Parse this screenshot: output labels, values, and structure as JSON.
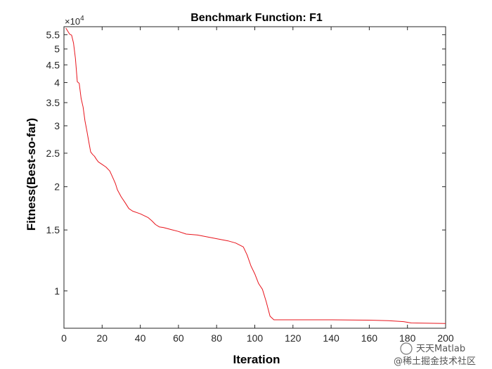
{
  "chart_data": {
    "type": "line",
    "title": "Benchmark Function: F1",
    "xlabel": "Iteration",
    "ylabel": "Fitness(Best-so-far)",
    "yscale": "log",
    "y_exponent_label": "×10",
    "y_exponent_power": "4",
    "xlim": [
      0,
      200
    ],
    "ylim": [
      7800,
      58000
    ],
    "x_ticks": [
      0,
      20,
      40,
      60,
      80,
      100,
      120,
      140,
      160,
      180,
      200
    ],
    "y_ticks": [
      {
        "value": 10000,
        "label": "1"
      },
      {
        "value": 15000,
        "label": "1.5"
      },
      {
        "value": 20000,
        "label": "2"
      },
      {
        "value": 25000,
        "label": "2.5"
      },
      {
        "value": 30000,
        "label": "3"
      },
      {
        "value": 35000,
        "label": "3.5"
      },
      {
        "value": 40000,
        "label": "4"
      },
      {
        "value": 45000,
        "label": "4.5"
      },
      {
        "value": 50000,
        "label": "5"
      },
      {
        "value": 55000,
        "label": "5.5"
      }
    ],
    "grid": false,
    "series": [
      {
        "color": "#e8141c",
        "x": [
          1,
          2,
          3,
          4,
          5,
          6,
          7,
          8,
          9,
          10,
          11,
          12,
          13,
          14,
          15,
          16,
          17,
          18,
          20,
          22,
          24,
          25,
          26,
          27,
          28,
          30,
          32,
          34,
          36,
          40,
          44,
          46,
          48,
          50,
          52,
          56,
          60,
          64,
          70,
          80,
          86,
          90,
          94,
          96,
          98,
          100,
          102,
          104,
          106,
          108,
          110,
          120,
          140,
          160,
          170,
          178,
          182,
          200
        ],
        "y": [
          57500,
          56300,
          55200,
          54800,
          52000,
          47000,
          40200,
          39800,
          36000,
          34000,
          31000,
          29000,
          27000,
          25200,
          24800,
          24500,
          24000,
          23600,
          23200,
          22800,
          22200,
          21600,
          21000,
          20400,
          19600,
          18700,
          18000,
          17300,
          17000,
          16700,
          16300,
          15950,
          15550,
          15300,
          15250,
          15050,
          14850,
          14600,
          14500,
          14150,
          13950,
          13750,
          13400,
          12700,
          11800,
          11200,
          10500,
          10100,
          9300,
          8450,
          8250,
          8250,
          8250,
          8230,
          8200,
          8150,
          8080,
          8050
        ]
      }
    ]
  },
  "watermark": {
    "line1": "天天Matlab",
    "line2": "@稀土掘金技术社区"
  }
}
